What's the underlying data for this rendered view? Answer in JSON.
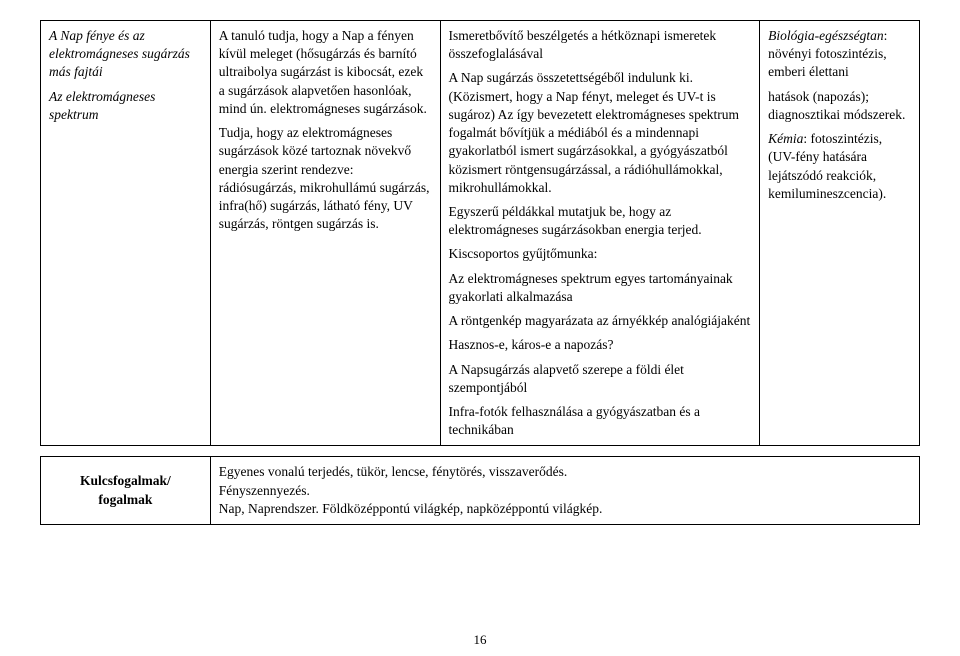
{
  "table": {
    "row": {
      "col1": {
        "line1": "A Nap fénye és az elektromágneses sugárzás más fajtái",
        "line2": "Az elektromágneses spektrum"
      },
      "col2": {
        "p1": "A tanuló tudja, hogy a Nap a fényen kívül meleget (hősugárzás és barnító ultraibolya sugárzást is kibocsát, ezek a sugárzások alapvetően hasonlóak, mind ún. elektromágneses sugárzások.",
        "p2": "Tudja, hogy az elektromágneses sugárzások közé tartoznak növekvő energia szerint rendezve: rádiósugárzás, mikrohullámú sugárzás, infra(hő) sugárzás, látható fény, UV sugárzás, röntgen sugárzás is."
      },
      "col3": {
        "p1": "Ismeretbővítő beszélgetés a hétköznapi ismeretek összefoglalásával",
        "p2": "A Nap sugárzás összetettségéből indulunk ki. (Közismert, hogy a Nap fényt, meleget és UV-t is sugároz) Az így bevezetett elektromágneses spektrum fogalmát bővítjük a médiából és a mindennapi gyakorlatból ismert sugárzásokkal, a gyógyászatból közismert röntgensugárzással, a rádióhullámokkal, mikrohullámokkal.",
        "p3": "Egyszerű példákkal mutatjuk be, hogy az elektromágneses sugárzásokban energia terjed.",
        "p4": "Kiscsoportos gyűjtőmunka:",
        "p5": "Az elektromágneses spektrum egyes tartományainak gyakorlati alkalmazása",
        "p6": "A röntgenkép magyarázata az árnyékkép analógiájaként",
        "p7": "Hasznos-e, káros-e a napozás?",
        "p8": "A Napsugárzás alapvető szerepe a földi élet szempontjából",
        "p9": "Infra-fotók felhasználása a gyógyászatban és a technikában"
      },
      "col4": {
        "p1a": "Biológia-egészségtan",
        "p1b": ": növényi fotoszintézis, emberi élettani",
        "p2": "hatások (napozás); diagnosztikai módszerek.",
        "p3a": "Kémia",
        "p3b": ": fotoszintézis, (UV-fény hatására lejátszódó reakciók, kemilumineszcencia)."
      }
    }
  },
  "keywords": {
    "label1": "Kulcsfogalmak/",
    "label2": "fogalmak",
    "line1": "Egyenes vonalú terjedés, tükör, lencse, fénytörés, visszaverődés.",
    "line2": "Fényszennyezés.",
    "line3": "Nap, Naprendszer. Földközéppontú világkép, napközéppontú világkép."
  },
  "page_number": "16"
}
